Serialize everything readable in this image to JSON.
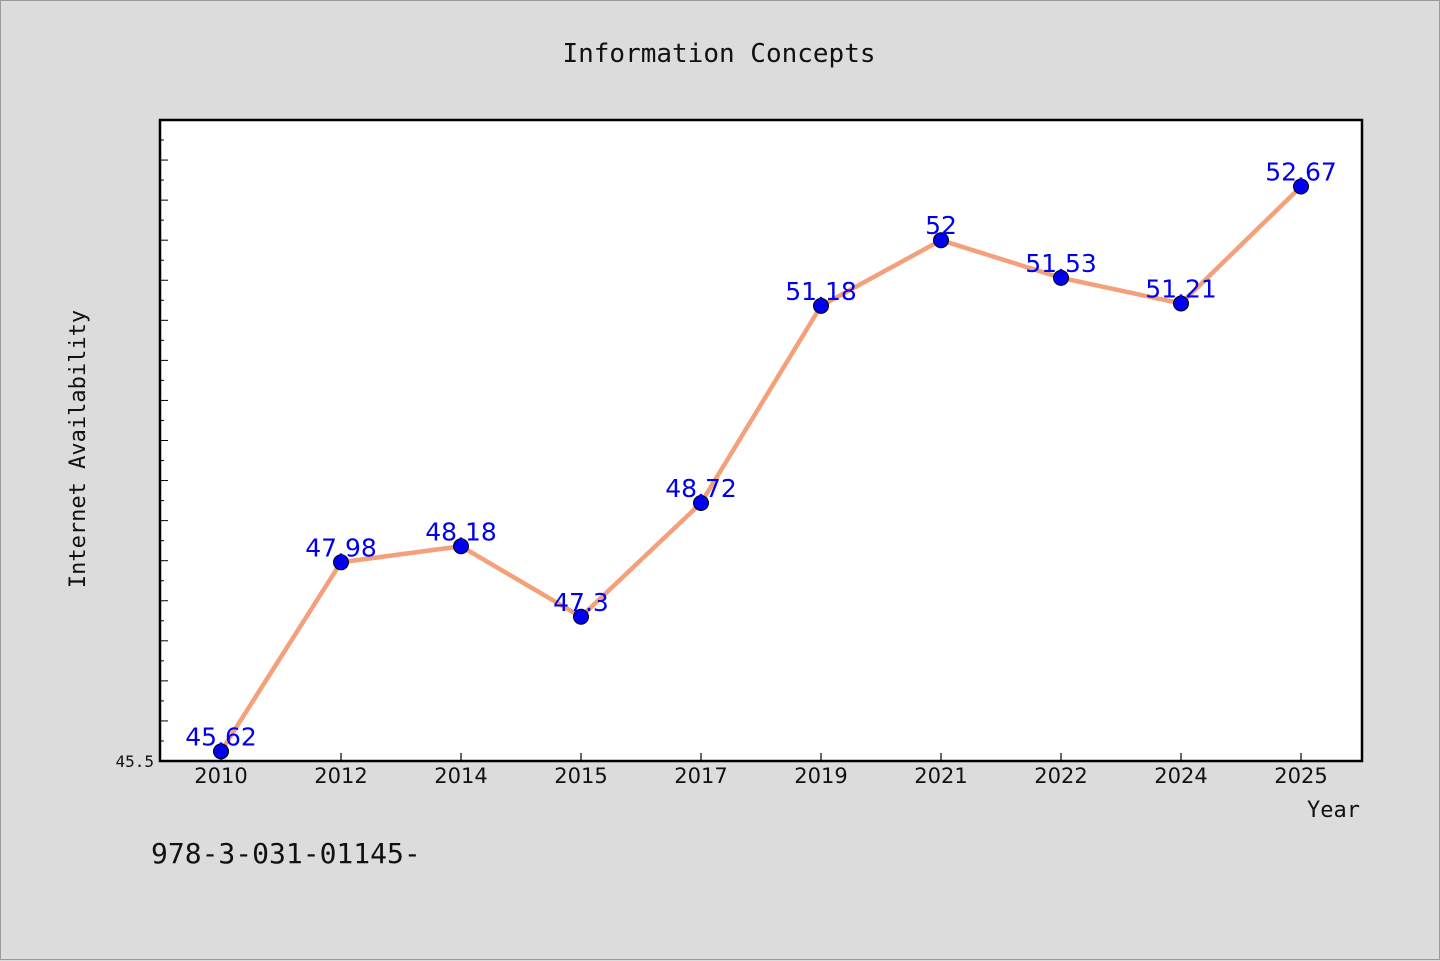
{
  "chart_data": {
    "type": "line",
    "title": "Information Concepts",
    "xlabel": "Year",
    "ylabel": "Internet Availability",
    "categories": [
      "2010",
      "2012",
      "2014",
      "2015",
      "2017",
      "2019",
      "2021",
      "2022",
      "2024",
      "2025"
    ],
    "series": [
      {
        "values": [
          45.62,
          47.98,
          48.18,
          47.3,
          48.72,
          51.18,
          52,
          51.53,
          51.21,
          52.67
        ],
        "labels": [
          "45.62",
          "47.98",
          "48.18",
          "47.3",
          "48.72",
          "51.18",
          "52",
          "51.53",
          "51.21",
          "52.67"
        ],
        "line_color": "#f4a07a",
        "marker_color": "#0000ee",
        "label_color": "#0000ee"
      }
    ],
    "ylim": [
      45.5,
      53.5
    ],
    "yticks_labeled": [
      "45.5"
    ],
    "grid": false,
    "legend": "none"
  },
  "footer_text": "978-3-031-01145-"
}
